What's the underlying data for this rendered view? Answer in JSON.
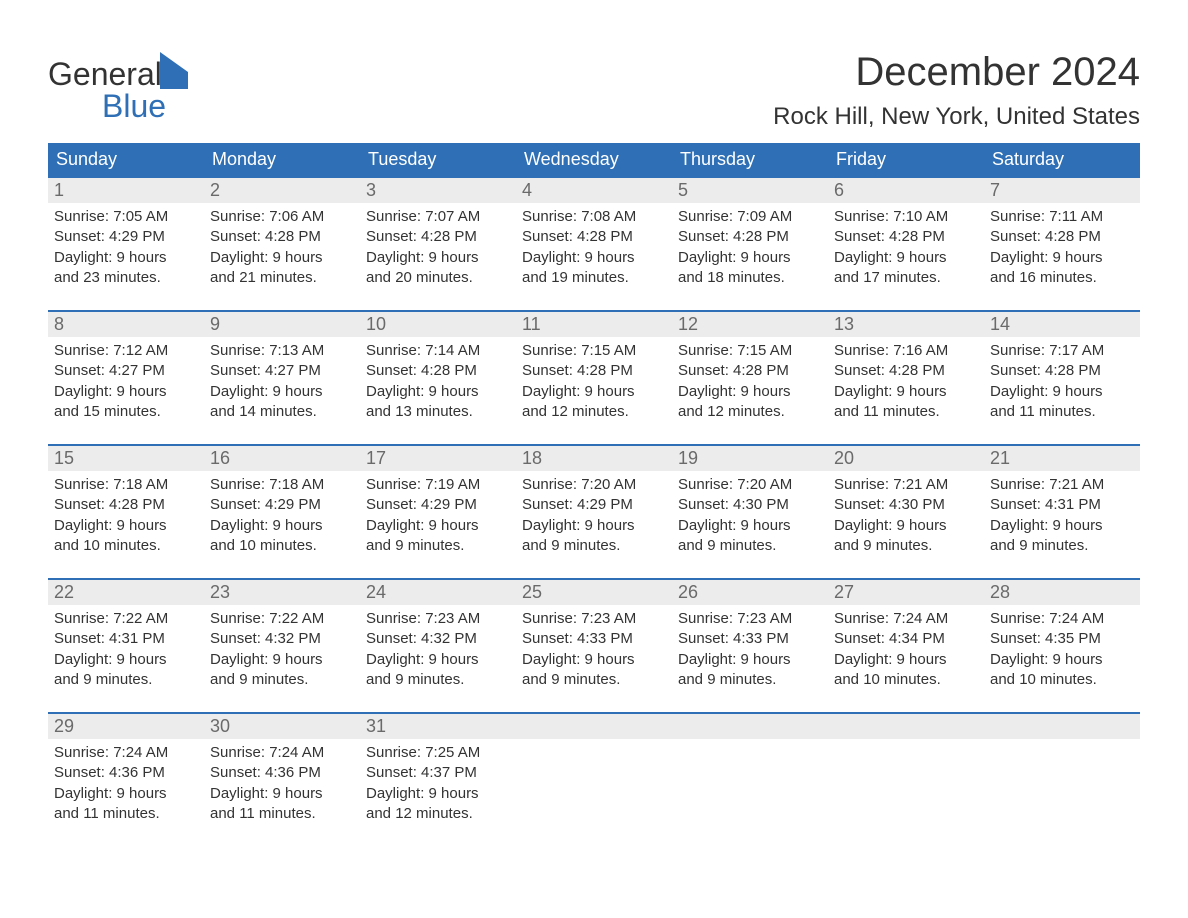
{
  "brand": {
    "word1": "General",
    "word2": "Blue"
  },
  "title": "December 2024",
  "location": "Rock Hill, New York, United States",
  "header_bg": "#2e6fb5",
  "weekdays": [
    "Sunday",
    "Monday",
    "Tuesday",
    "Wednesday",
    "Thursday",
    "Friday",
    "Saturday"
  ],
  "weeks": [
    [
      {
        "n": "1",
        "sunrise": "Sunrise: 7:05 AM",
        "sunset": "Sunset: 4:29 PM",
        "day1": "Daylight: 9 hours",
        "day2": "and 23 minutes."
      },
      {
        "n": "2",
        "sunrise": "Sunrise: 7:06 AM",
        "sunset": "Sunset: 4:28 PM",
        "day1": "Daylight: 9 hours",
        "day2": "and 21 minutes."
      },
      {
        "n": "3",
        "sunrise": "Sunrise: 7:07 AM",
        "sunset": "Sunset: 4:28 PM",
        "day1": "Daylight: 9 hours",
        "day2": "and 20 minutes."
      },
      {
        "n": "4",
        "sunrise": "Sunrise: 7:08 AM",
        "sunset": "Sunset: 4:28 PM",
        "day1": "Daylight: 9 hours",
        "day2": "and 19 minutes."
      },
      {
        "n": "5",
        "sunrise": "Sunrise: 7:09 AM",
        "sunset": "Sunset: 4:28 PM",
        "day1": "Daylight: 9 hours",
        "day2": "and 18 minutes."
      },
      {
        "n": "6",
        "sunrise": "Sunrise: 7:10 AM",
        "sunset": "Sunset: 4:28 PM",
        "day1": "Daylight: 9 hours",
        "day2": "and 17 minutes."
      },
      {
        "n": "7",
        "sunrise": "Sunrise: 7:11 AM",
        "sunset": "Sunset: 4:28 PM",
        "day1": "Daylight: 9 hours",
        "day2": "and 16 minutes."
      }
    ],
    [
      {
        "n": "8",
        "sunrise": "Sunrise: 7:12 AM",
        "sunset": "Sunset: 4:27 PM",
        "day1": "Daylight: 9 hours",
        "day2": "and 15 minutes."
      },
      {
        "n": "9",
        "sunrise": "Sunrise: 7:13 AM",
        "sunset": "Sunset: 4:27 PM",
        "day1": "Daylight: 9 hours",
        "day2": "and 14 minutes."
      },
      {
        "n": "10",
        "sunrise": "Sunrise: 7:14 AM",
        "sunset": "Sunset: 4:28 PM",
        "day1": "Daylight: 9 hours",
        "day2": "and 13 minutes."
      },
      {
        "n": "11",
        "sunrise": "Sunrise: 7:15 AM",
        "sunset": "Sunset: 4:28 PM",
        "day1": "Daylight: 9 hours",
        "day2": "and 12 minutes."
      },
      {
        "n": "12",
        "sunrise": "Sunrise: 7:15 AM",
        "sunset": "Sunset: 4:28 PM",
        "day1": "Daylight: 9 hours",
        "day2": "and 12 minutes."
      },
      {
        "n": "13",
        "sunrise": "Sunrise: 7:16 AM",
        "sunset": "Sunset: 4:28 PM",
        "day1": "Daylight: 9 hours",
        "day2": "and 11 minutes."
      },
      {
        "n": "14",
        "sunrise": "Sunrise: 7:17 AM",
        "sunset": "Sunset: 4:28 PM",
        "day1": "Daylight: 9 hours",
        "day2": "and 11 minutes."
      }
    ],
    [
      {
        "n": "15",
        "sunrise": "Sunrise: 7:18 AM",
        "sunset": "Sunset: 4:28 PM",
        "day1": "Daylight: 9 hours",
        "day2": "and 10 minutes."
      },
      {
        "n": "16",
        "sunrise": "Sunrise: 7:18 AM",
        "sunset": "Sunset: 4:29 PM",
        "day1": "Daylight: 9 hours",
        "day2": "and 10 minutes."
      },
      {
        "n": "17",
        "sunrise": "Sunrise: 7:19 AM",
        "sunset": "Sunset: 4:29 PM",
        "day1": "Daylight: 9 hours",
        "day2": "and 9 minutes."
      },
      {
        "n": "18",
        "sunrise": "Sunrise: 7:20 AM",
        "sunset": "Sunset: 4:29 PM",
        "day1": "Daylight: 9 hours",
        "day2": "and 9 minutes."
      },
      {
        "n": "19",
        "sunrise": "Sunrise: 7:20 AM",
        "sunset": "Sunset: 4:30 PM",
        "day1": "Daylight: 9 hours",
        "day2": "and 9 minutes."
      },
      {
        "n": "20",
        "sunrise": "Sunrise: 7:21 AM",
        "sunset": "Sunset: 4:30 PM",
        "day1": "Daylight: 9 hours",
        "day2": "and 9 minutes."
      },
      {
        "n": "21",
        "sunrise": "Sunrise: 7:21 AM",
        "sunset": "Sunset: 4:31 PM",
        "day1": "Daylight: 9 hours",
        "day2": "and 9 minutes."
      }
    ],
    [
      {
        "n": "22",
        "sunrise": "Sunrise: 7:22 AM",
        "sunset": "Sunset: 4:31 PM",
        "day1": "Daylight: 9 hours",
        "day2": "and 9 minutes."
      },
      {
        "n": "23",
        "sunrise": "Sunrise: 7:22 AM",
        "sunset": "Sunset: 4:32 PM",
        "day1": "Daylight: 9 hours",
        "day2": "and 9 minutes."
      },
      {
        "n": "24",
        "sunrise": "Sunrise: 7:23 AM",
        "sunset": "Sunset: 4:32 PM",
        "day1": "Daylight: 9 hours",
        "day2": "and 9 minutes."
      },
      {
        "n": "25",
        "sunrise": "Sunrise: 7:23 AM",
        "sunset": "Sunset: 4:33 PM",
        "day1": "Daylight: 9 hours",
        "day2": "and 9 minutes."
      },
      {
        "n": "26",
        "sunrise": "Sunrise: 7:23 AM",
        "sunset": "Sunset: 4:33 PM",
        "day1": "Daylight: 9 hours",
        "day2": "and 9 minutes."
      },
      {
        "n": "27",
        "sunrise": "Sunrise: 7:24 AM",
        "sunset": "Sunset: 4:34 PM",
        "day1": "Daylight: 9 hours",
        "day2": "and 10 minutes."
      },
      {
        "n": "28",
        "sunrise": "Sunrise: 7:24 AM",
        "sunset": "Sunset: 4:35 PM",
        "day1": "Daylight: 9 hours",
        "day2": "and 10 minutes."
      }
    ],
    [
      {
        "n": "29",
        "sunrise": "Sunrise: 7:24 AM",
        "sunset": "Sunset: 4:36 PM",
        "day1": "Daylight: 9 hours",
        "day2": "and 11 minutes."
      },
      {
        "n": "30",
        "sunrise": "Sunrise: 7:24 AM",
        "sunset": "Sunset: 4:36 PM",
        "day1": "Daylight: 9 hours",
        "day2": "and 11 minutes."
      },
      {
        "n": "31",
        "sunrise": "Sunrise: 7:25 AM",
        "sunset": "Sunset: 4:37 PM",
        "day1": "Daylight: 9 hours",
        "day2": "and 12 minutes."
      },
      {
        "empty": true
      },
      {
        "empty": true
      },
      {
        "empty": true
      },
      {
        "empty": true
      }
    ]
  ]
}
